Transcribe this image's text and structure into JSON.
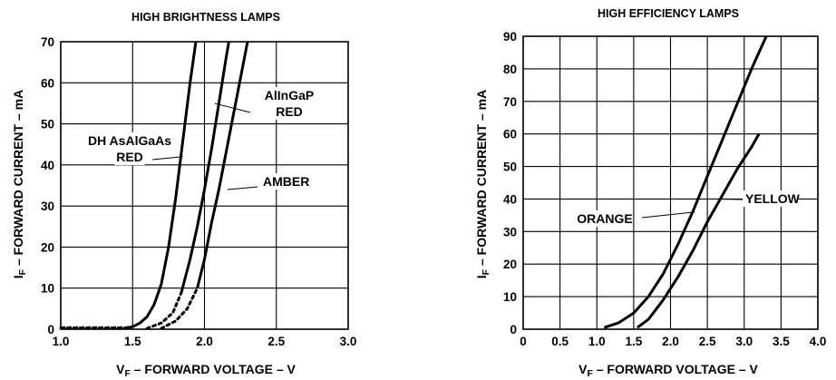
{
  "chart_data": [
    {
      "type": "line",
      "title": "HIGH BRIGHTNESS LAMPS",
      "xlabel_sub": "F",
      "xlabel_main": " – FORWARD VOLTAGE – V",
      "xlabel_prefix": "V",
      "ylabel_prefix": "I",
      "ylabel_sub": "F",
      "ylabel_main": " – FORWARD CURRENT – mA",
      "xlim": [
        1.0,
        3.0
      ],
      "ylim": [
        0,
        70
      ],
      "grid": true,
      "xticks": [
        "1.0",
        "1.5",
        "2.0",
        "2.5",
        "3.0"
      ],
      "yticks": [
        "0",
        "10",
        "20",
        "30",
        "40",
        "50",
        "60",
        "70"
      ],
      "series": [
        {
          "name": "DH AsAlGaAs RED",
          "points": [
            [
              1.0,
              0.3
            ],
            [
              1.45,
              0.3
            ],
            [
              1.5,
              0.6
            ],
            [
              1.55,
              1.5
            ],
            [
              1.6,
              3
            ],
            [
              1.65,
              6
            ],
            [
              1.7,
              11
            ],
            [
              1.75,
              20
            ],
            [
              1.8,
              32
            ],
            [
              1.85,
              46
            ],
            [
              1.9,
              60
            ],
            [
              1.94,
              70
            ]
          ],
          "dashed_until": 1.45
        },
        {
          "name": "AlInGaP RED",
          "points": [
            [
              1.6,
              0.2
            ],
            [
              1.7,
              1.5
            ],
            [
              1.78,
              4
            ],
            [
              1.84,
              9
            ],
            [
              1.9,
              17
            ],
            [
              1.95,
              25
            ],
            [
              2.0,
              34
            ],
            [
              2.05,
              44
            ],
            [
              2.1,
              55
            ],
            [
              2.15,
              66
            ],
            [
              2.17,
              70
            ]
          ],
          "dashed_until": 1.84
        },
        {
          "name": "AMBER",
          "points": [
            [
              1.7,
              0.2
            ],
            [
              1.8,
              2
            ],
            [
              1.88,
              5
            ],
            [
              1.95,
              10
            ],
            [
              2.0,
              17
            ],
            [
              2.05,
              26
            ],
            [
              2.1,
              34
            ],
            [
              2.15,
              43
            ],
            [
              2.2,
              52
            ],
            [
              2.25,
              61
            ],
            [
              2.3,
              70
            ]
          ],
          "dashed_until": 1.95
        }
      ],
      "annotations": [
        {
          "lines": [
            "DH AsAlGaAs",
            "RED"
          ],
          "target": [
            1.85,
            42
          ]
        },
        {
          "lines": [
            "AlInGaP",
            "RED"
          ],
          "target": [
            2.07,
            55
          ]
        },
        {
          "lines": [
            "AMBER"
          ],
          "target": [
            2.16,
            34
          ]
        }
      ]
    },
    {
      "type": "line",
      "title": "HIGH EFFICIENCY LAMPS",
      "xlabel_prefix": "V",
      "xlabel_sub": "F",
      "xlabel_main": " – FORWARD VOLTAGE – V",
      "ylabel_prefix": "I",
      "ylabel_sub": "F",
      "ylabel_main": " – FORWARD CURRENT – mA",
      "xlim": [
        0,
        4.0
      ],
      "ylim": [
        0,
        90
      ],
      "grid": true,
      "xticks": [
        "0",
        "0.5",
        "1.0",
        "1.5",
        "2.0",
        "2.5",
        "3.0",
        "3.5",
        "4.0"
      ],
      "yticks": [
        "0",
        "10",
        "20",
        "30",
        "40",
        "50",
        "60",
        "70",
        "80",
        "90"
      ],
      "series": [
        {
          "name": "ORANGE",
          "points": [
            [
              1.1,
              0.5
            ],
            [
              1.3,
              2
            ],
            [
              1.5,
              5
            ],
            [
              1.7,
              10
            ],
            [
              1.9,
              17
            ],
            [
              2.1,
              26
            ],
            [
              2.3,
              36
            ],
            [
              2.5,
              47
            ],
            [
              2.7,
              58
            ],
            [
              2.9,
              69
            ],
            [
              3.1,
              80
            ],
            [
              3.3,
              90
            ]
          ]
        },
        {
          "name": "YELLOW",
          "points": [
            [
              1.55,
              0.5
            ],
            [
              1.7,
              3
            ],
            [
              1.9,
              9
            ],
            [
              2.1,
              16
            ],
            [
              2.3,
              24
            ],
            [
              2.5,
              33
            ],
            [
              2.7,
              41
            ],
            [
              2.9,
              49
            ],
            [
              3.1,
              56
            ],
            [
              3.2,
              60
            ]
          ]
        }
      ],
      "annotations": [
        {
          "lines": [
            "ORANGE"
          ],
          "target": [
            2.33,
            36
          ]
        },
        {
          "lines": [
            "YELLOW"
          ],
          "target": [
            2.62,
            40
          ]
        }
      ]
    }
  ]
}
